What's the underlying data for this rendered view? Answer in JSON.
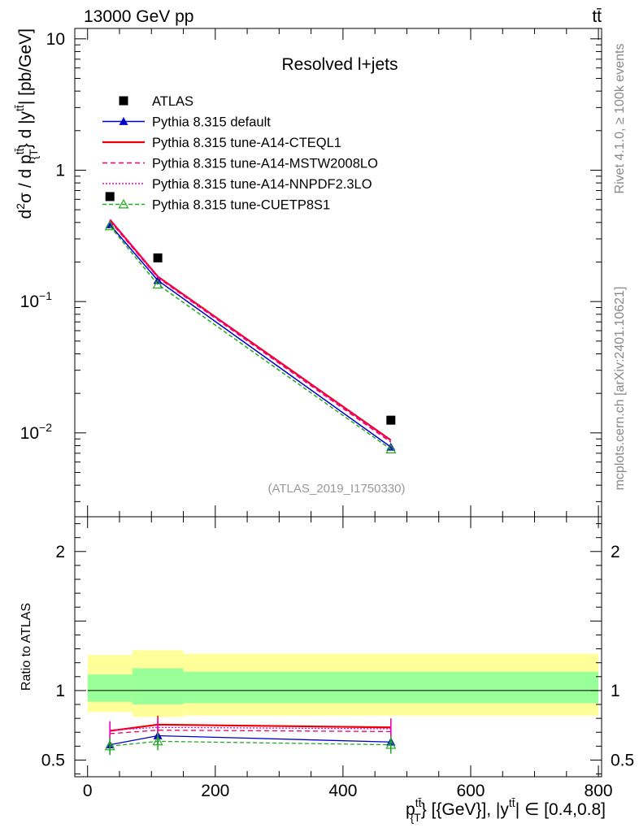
{
  "header": {
    "energy_label": "13000 GeV pp",
    "process_label": "tt̄"
  },
  "side_labels": {
    "rivet": "Rivet 4.1.0, ≥ 100k events",
    "mcplots": "mcplots.cern.ch [arXiv:2401.10621]"
  },
  "chart_data": {
    "type": "line",
    "title": "Resolved l+jets",
    "analysis_id": "(ATLAS_2019_I1750330)",
    "xlabel_main": "p",
    "xlabel_sup": "tt̄",
    "xlabel_sub": "{T",
    "xlabel_rest": "} [{GeV}], |y",
    "xlabel_sup2": "tt̄",
    "xlabel_tail": "| ∈ [0.4,0.8]",
    "ylabel": "d²σ / d p{T}^tt̄} d |y^tt̄| [pb/GeV]",
    "ylabel_parts": {
      "d1": "d",
      "sup2": "2",
      "sigma": "σ / d p",
      "supA": "tt̄",
      "subT": "{T",
      "mid": "} d |y",
      "supB": "tt̄",
      "tail": "| [pb/GeV]"
    },
    "ratio_ylabel": "Ratio to ATLAS",
    "xlim": [
      -20,
      805
    ],
    "ylim_main": [
      0.0023,
      12
    ],
    "ylim_ratio": [
      0.38,
      2.25
    ],
    "x_ticks": [
      0,
      200,
      400,
      600,
      800
    ],
    "main_y_ticks": [
      {
        "value": 10,
        "base": "10",
        "exp": ""
      },
      {
        "value": 1,
        "base": "1",
        "exp": ""
      },
      {
        "value": 0.1,
        "base": "10",
        "exp": "−1"
      },
      {
        "value": 0.01,
        "base": "10",
        "exp": "−2"
      }
    ],
    "ratio_y_ticks": [
      {
        "value": 0.5,
        "label": "0.5"
      },
      {
        "value": 1,
        "label": "1"
      },
      {
        "value": 2,
        "label": "2"
      }
    ],
    "bins": [
      {
        "x": 35,
        "low": 0,
        "high": 70
      },
      {
        "x": 110,
        "low": 70,
        "high": 150
      },
      {
        "x": 475,
        "low": 150,
        "high": 800
      }
    ],
    "data": {
      "name": "ATLAS",
      "values": [
        0.63,
        0.215,
        0.0125
      ],
      "band_outer": [
        [
          0.845,
          1.255
        ],
        [
          0.81,
          1.29
        ],
        [
          0.82,
          1.265
        ]
      ],
      "band_inner": [
        [
          0.92,
          1.115
        ],
        [
          0.9,
          1.16
        ],
        [
          0.91,
          1.135
        ]
      ]
    },
    "series": [
      {
        "name": "Pythia 8.315 default",
        "color": "#0000cc",
        "dash": "",
        "marker": "triangle-filled",
        "values": [
          0.385,
          0.145,
          0.0078
        ],
        "ratio": [
          0.61,
          0.675,
          0.63
        ]
      },
      {
        "name": "Pythia 8.315 tune-A14-CTEQL1",
        "color": "#ee0000",
        "dash": "",
        "marker": "none",
        "values": [
          0.42,
          0.155,
          0.0088
        ],
        "ratio": [
          0.71,
          0.755,
          0.735
        ]
      },
      {
        "name": "Pythia 8.315 tune-A14-MSTW2008LO",
        "color": "#ee0066",
        "dash": "6,4",
        "marker": "none",
        "values": [
          0.41,
          0.152,
          0.0085
        ],
        "ratio": [
          0.69,
          0.715,
          0.705
        ]
      },
      {
        "name": "Pythia 8.315 tune-A14-NNPDF2.3LO",
        "color": "#ee00cc",
        "dash": "2,2",
        "marker": "none",
        "values": [
          0.42,
          0.154,
          0.0087
        ],
        "ratio": [
          0.715,
          0.735,
          0.725
        ]
      },
      {
        "name": "Pythia 8.315 tune-CUETP8S1",
        "color": "#22aa22",
        "dash": "5,3",
        "marker": "triangle-open",
        "values": [
          0.375,
          0.135,
          0.0075
        ],
        "ratio": [
          0.6,
          0.635,
          0.61
        ]
      }
    ],
    "colors": {
      "band_outer": "#ffff99",
      "band_inner": "#99ff99"
    }
  }
}
